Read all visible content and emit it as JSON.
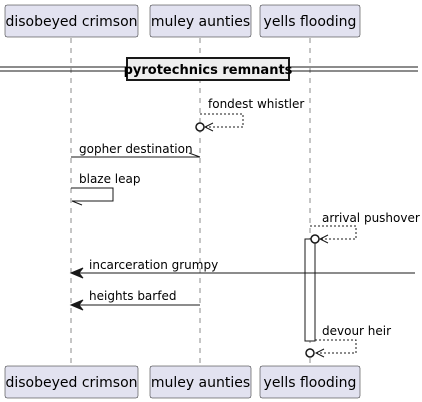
{
  "participants": {
    "p1": "disobeyed crimson",
    "p2": "muley aunties",
    "p3": "yells flooding"
  },
  "section": {
    "title": "pyrotechnics remnants"
  },
  "messages": [
    {
      "label": "fondest whistler",
      "style": "dashed-self-lost"
    },
    {
      "label": "gopher destination",
      "style": "solid-open"
    },
    {
      "label": "blaze leap",
      "style": "solid-self"
    },
    {
      "label": "arrival pushover",
      "style": "dashed-self-lost"
    },
    {
      "label": "incarceration grumpy",
      "style": "solid-filled-found"
    },
    {
      "label": "heights barfed",
      "style": "solid-filled"
    },
    {
      "label": "devour heir",
      "style": "dashed-self-lost"
    }
  ]
}
